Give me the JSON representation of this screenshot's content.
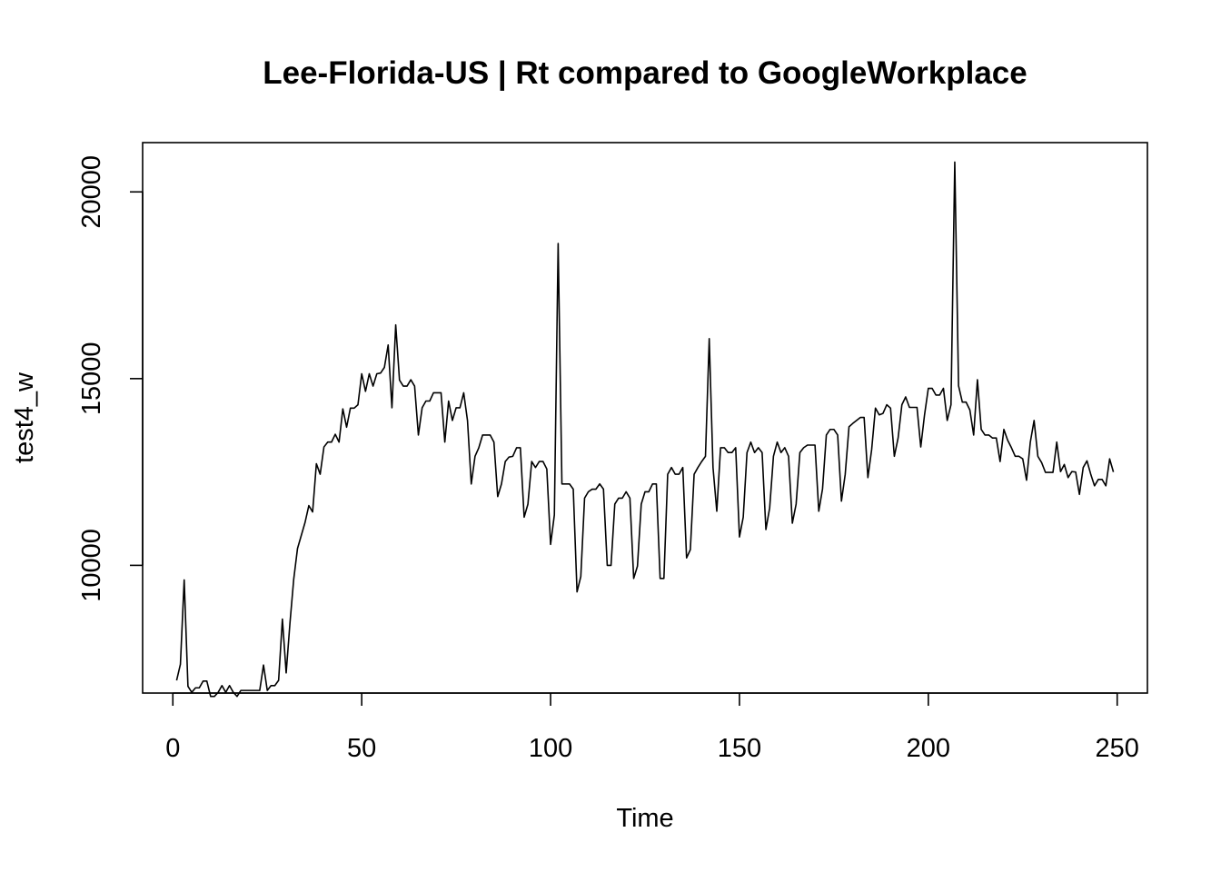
{
  "chart_data": {
    "type": "line",
    "title": "Lee-Florida-US | Rt compared to GoogleWorkplace",
    "xlabel": "Time",
    "ylabel": "test4_w",
    "xlim": [
      -8,
      258
    ],
    "ylim": [
      6580,
      21320
    ],
    "x_ticks": [
      0,
      50,
      100,
      150,
      200,
      250
    ],
    "y_ticks": [
      10000,
      15000,
      20000
    ],
    "grid": false,
    "legend": "none",
    "colors": {
      "line": "#000000",
      "axes": "#000000",
      "background": "#ffffff"
    },
    "series": [
      {
        "x_start": 1,
        "x_step": 1,
        "values": [
          6920,
          7350,
          9610,
          6760,
          6600,
          6720,
          6720,
          6900,
          6900,
          6490,
          6490,
          6600,
          6780,
          6600,
          6780,
          6600,
          6490,
          6650,
          6650,
          6650,
          6650,
          6650,
          6650,
          7330,
          6650,
          6780,
          6780,
          6920,
          8560,
          7120,
          8450,
          9630,
          10450,
          10800,
          11150,
          11600,
          11430,
          12720,
          12440,
          13170,
          13300,
          13300,
          13510,
          13300,
          14190,
          13700,
          14210,
          14210,
          14300,
          15130,
          14660,
          15130,
          14800,
          15130,
          15150,
          15300,
          15900,
          14220,
          16440,
          14960,
          14800,
          14800,
          14970,
          14800,
          13490,
          14220,
          14400,
          14400,
          14620,
          14620,
          14620,
          13300,
          14400,
          13880,
          14220,
          14220,
          14620,
          13880,
          12180,
          12920,
          13150,
          13490,
          13490,
          13490,
          13300,
          11840,
          12180,
          12780,
          12900,
          12920,
          13150,
          13150,
          11290,
          11640,
          12780,
          12620,
          12780,
          12780,
          12580,
          10560,
          11350,
          18620,
          12180,
          12180,
          12180,
          12040,
          9290,
          9700,
          11800,
          11970,
          12040,
          12040,
          12180,
          12040,
          10000,
          10000,
          11640,
          11800,
          11800,
          11970,
          11800,
          9650,
          9980,
          11640,
          11970,
          11970,
          12180,
          12180,
          9650,
          9650,
          12440,
          12620,
          12440,
          12440,
          12620,
          10200,
          10420,
          12440,
          12620,
          12780,
          12920,
          16070,
          12620,
          11450,
          13150,
          13150,
          13020,
          13020,
          13150,
          10760,
          11290,
          13020,
          13300,
          13020,
          13150,
          13020,
          10960,
          11540,
          12920,
          13300,
          13020,
          13150,
          12920,
          11130,
          11640,
          13020,
          13150,
          13220,
          13220,
          13220,
          11450,
          12050,
          13490,
          13640,
          13640,
          13490,
          11720,
          12440,
          13710,
          13800,
          13880,
          13960,
          13960,
          12350,
          13100,
          14210,
          14030,
          14070,
          14300,
          14210,
          12920,
          13410,
          14300,
          14510,
          14230,
          14230,
          14230,
          13170,
          14030,
          14740,
          14740,
          14560,
          14560,
          14740,
          13880,
          14300,
          20800,
          14810,
          14370,
          14370,
          14160,
          13490,
          14970,
          13640,
          13490,
          13490,
          13410,
          13410,
          12780,
          13640,
          13350,
          13150,
          12920,
          12920,
          12850,
          12280,
          13300,
          13880,
          12920,
          12750,
          12490,
          12490,
          12490,
          13300,
          12510,
          12700,
          12350,
          12510,
          12500,
          11900,
          12620,
          12800,
          12440,
          12130,
          12300,
          12300,
          12130,
          12850,
          12500
        ]
      }
    ]
  }
}
